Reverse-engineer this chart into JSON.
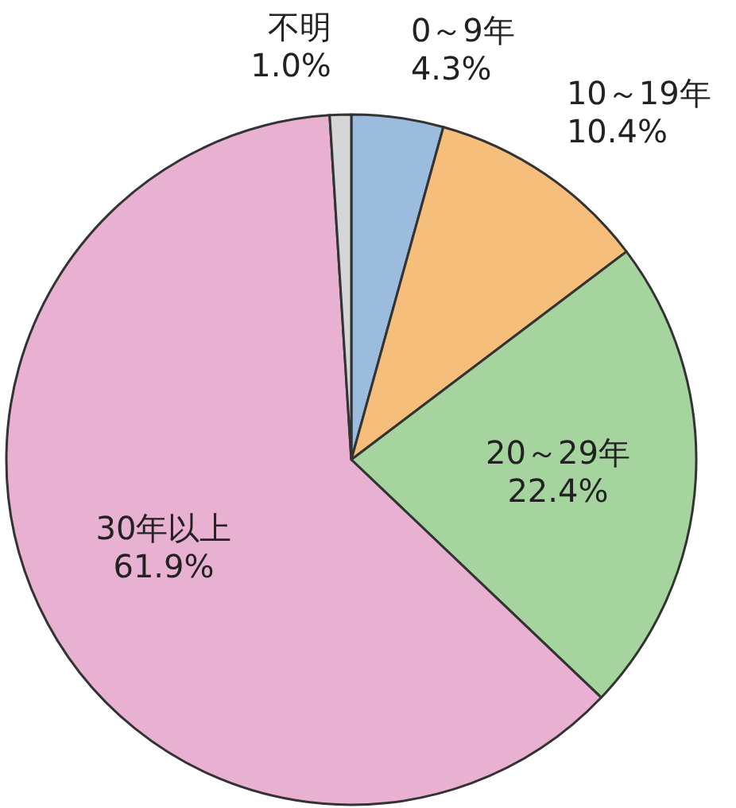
{
  "chart_data": {
    "type": "pie",
    "categories": [
      "0～9年",
      "10～19年",
      "20～29年",
      "30年以上",
      "不明"
    ],
    "values": [
      4.3,
      10.4,
      22.4,
      61.9,
      1.0
    ],
    "colors": [
      "#9bbcdc",
      "#f5bf7b",
      "#a5d49e",
      "#e9b1d1",
      "#d4d6d8"
    ],
    "value_labels": [
      "4.3%",
      "10.4%",
      "22.4%",
      "61.9%",
      "1.0%"
    ]
  }
}
